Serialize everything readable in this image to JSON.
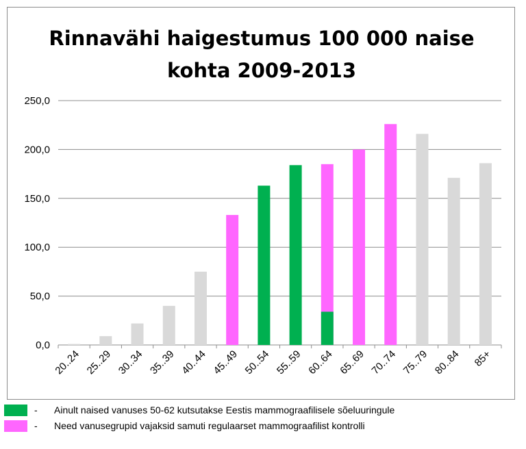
{
  "chart_data": {
    "type": "bar",
    "title_lines": [
      "Rinnavähi haigestumus 100 000 naise",
      "kohta 2009-2013"
    ],
    "categories": [
      "20..24",
      "25..29",
      "30..34",
      "35..39",
      "40..44",
      "45..49",
      "50..54",
      "55..59",
      "60..64",
      "65..69",
      "70..74",
      "75..79",
      "80..84",
      "85+"
    ],
    "values": [
      1.0,
      9.0,
      22.0,
      40.0,
      75.0,
      133.0,
      163.0,
      184.0,
      185.0,
      200.0,
      226.0,
      216.0,
      171.0,
      186.0
    ],
    "bar_groups": [
      "gray",
      "gray",
      "gray",
      "gray",
      "gray",
      "pink",
      "green",
      "green",
      "pink",
      "pink",
      "pink",
      "gray",
      "gray",
      "gray"
    ],
    "overlay": {
      "category": "60..64",
      "value": 34.0,
      "group": "green"
    },
    "ylim": [
      0,
      250
    ],
    "yticks": [
      "0,0",
      "50,0",
      "100,0",
      "150,0",
      "200,0",
      "250,0"
    ],
    "ytick_values": [
      0,
      50,
      100,
      150,
      200,
      250
    ],
    "grid": true,
    "xlabel": "",
    "ylabel": "",
    "colors": {
      "green": "#00b050",
      "pink": "#ff66ff",
      "gray": "#d9d9d9",
      "grid": "#8c8c8c"
    }
  },
  "legend": [
    {
      "color": "#00b050",
      "dash": "-",
      "text": "Ainult naised vanuses 50-62 kutsutakse Eestis mammograafilisele sõeluuringule"
    },
    {
      "color": "#ff66ff",
      "dash": "-",
      "text": "Need vanusegrupid vajaksid samuti regulaarset mammograafilist kontrolli"
    }
  ]
}
